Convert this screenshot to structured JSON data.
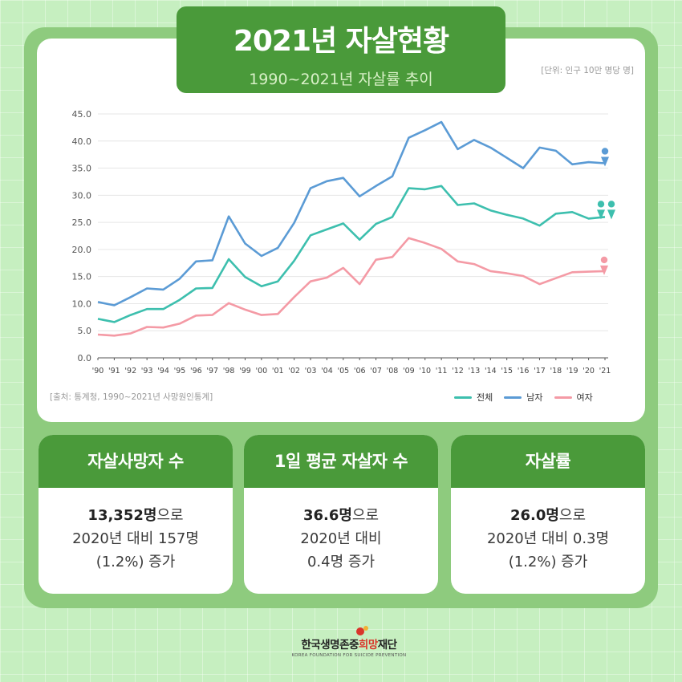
{
  "header": {
    "title": "2021년 자살현황",
    "subtitle": "1990~2021년 자살률 추이",
    "unit_note": "[단위: 인구 10만 명당 명]"
  },
  "source_note": "[출처: 통계청, 1990~2021년 사망원인통계]",
  "legend": {
    "total": "전체",
    "male": "남자",
    "female": "여자"
  },
  "colors": {
    "total": "#3dbfae",
    "male": "#5b9bd5",
    "female": "#f49aa5",
    "header_green": "#4a9a3a",
    "panel_green": "#8ecb7e"
  },
  "chart_data": {
    "type": "line",
    "x": [
      "'90",
      "'91",
      "'92",
      "'93",
      "'94",
      "'95",
      "'96",
      "'97",
      "'98",
      "'99",
      "'00",
      "'01",
      "'02",
      "'03",
      "'04",
      "'05",
      "'06",
      "'07",
      "'08",
      "'09",
      "'10",
      "'11",
      "'12",
      "'13",
      "'14",
      "'15",
      "'16",
      "'17",
      "'18",
      "'19",
      "'20",
      "'21"
    ],
    "y_ticks": [
      "0.0",
      "5.0",
      "10.0",
      "15.0",
      "20.0",
      "25.0",
      "30.0",
      "35.0",
      "40.0",
      "45.0"
    ],
    "ylim": [
      0,
      45
    ],
    "grid": true,
    "legend_position": "bottom-right",
    "series": [
      {
        "key": "male",
        "name": "남자",
        "values": [
          10.3,
          9.7,
          11.2,
          12.8,
          12.6,
          14.6,
          17.8,
          18.0,
          26.1,
          21.1,
          18.8,
          20.3,
          24.9,
          31.3,
          32.6,
          33.2,
          29.8,
          31.7,
          33.5,
          40.6,
          42.0,
          43.5,
          38.5,
          40.2,
          38.8,
          36.9,
          35.0,
          38.8,
          38.2,
          35.7,
          36.1,
          35.9
        ]
      },
      {
        "key": "total",
        "name": "전체",
        "values": [
          7.2,
          6.6,
          7.9,
          9.0,
          9.0,
          10.7,
          12.8,
          12.9,
          18.2,
          14.9,
          13.2,
          14.1,
          17.9,
          22.6,
          23.7,
          24.8,
          21.8,
          24.7,
          26.0,
          31.3,
          31.1,
          31.7,
          28.2,
          28.5,
          27.2,
          26.4,
          25.7,
          24.4,
          26.6,
          26.9,
          25.7,
          26.0
        ]
      },
      {
        "key": "female",
        "name": "여자",
        "values": [
          4.3,
          4.1,
          4.5,
          5.7,
          5.6,
          6.3,
          7.8,
          7.9,
          10.1,
          8.9,
          7.9,
          8.1,
          11.2,
          14.1,
          14.8,
          16.6,
          13.6,
          18.1,
          18.6,
          22.1,
          21.2,
          20.1,
          17.8,
          17.3,
          16.0,
          15.6,
          15.1,
          13.6,
          14.7,
          15.8,
          15.9,
          16.0
        ]
      }
    ]
  },
  "stats": [
    {
      "heading": "자살사망자 수",
      "line1_bold": "13,352명",
      "line1_rest": "으로",
      "line2": "2020년 대비 157명",
      "line3": "(1.2%) 증가"
    },
    {
      "heading": "1일 평균 자살자 수",
      "line1_bold": "36.6명",
      "line1_rest": "으로",
      "line2": "2020년 대비",
      "line3": "0.4명 증가"
    },
    {
      "heading": "자살률",
      "line1_bold": "26.0명",
      "line1_rest": "으로",
      "line2": "2020년 대비 0.3명",
      "line3": "(1.2%) 증가"
    }
  ],
  "footer": {
    "org_name_a": "한국생명존중",
    "org_name_accent": "희망",
    "org_name_b": "재단",
    "org_name_en": "KOREA FOUNDATION FOR SUICIDE PREVENTION"
  }
}
